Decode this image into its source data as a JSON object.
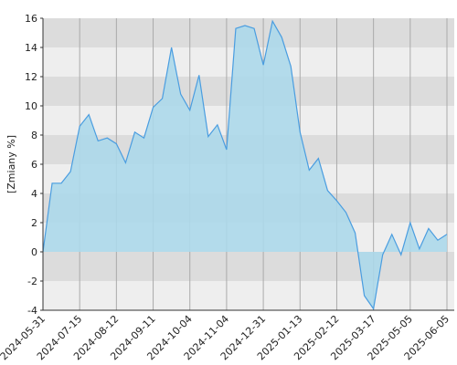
{
  "chart_data": {
    "type": "area",
    "ylabel": "[Zmiany %]",
    "categories": [
      "2024-05-31",
      null,
      null,
      null,
      "2024-07-15",
      null,
      null,
      null,
      "2024-08-12",
      null,
      null,
      null,
      "2024-09-11",
      null,
      null,
      null,
      "2024-10-04",
      null,
      null,
      null,
      "2024-11-04",
      null,
      null,
      null,
      "2024-12-31",
      null,
      null,
      null,
      "2025-01-13",
      null,
      null,
      null,
      "2025-02-12",
      null,
      null,
      null,
      "2025-03-17",
      null,
      null,
      null,
      "2025-05-05",
      null,
      null,
      null,
      "2025-06-05"
    ],
    "series": [
      {
        "name": "Zmiany",
        "color": "#4a9de0",
        "fill": "#acd8ea",
        "values": [
          0,
          4.7,
          4.7,
          5.5,
          8.6,
          9.4,
          7.6,
          7.8,
          7.4,
          6.1,
          8.2,
          7.8,
          9.9,
          10.5,
          14.0,
          10.8,
          9.7,
          12.1,
          7.9,
          8.7,
          7.0,
          15.3,
          15.5,
          15.3,
          12.8,
          15.8,
          14.7,
          12.7,
          8.2,
          5.6,
          6.4,
          4.2,
          3.5,
          2.7,
          1.3,
          -3.0,
          -3.9,
          -0.2,
          1.2,
          -0.2,
          2.0,
          0.2,
          1.6,
          0.8,
          1.2
        ]
      }
    ],
    "ylim": [
      -4,
      16
    ],
    "yticks": [
      -4,
      -2,
      0,
      2,
      4,
      6,
      8,
      10,
      12,
      14,
      16
    ],
    "grid": true
  }
}
